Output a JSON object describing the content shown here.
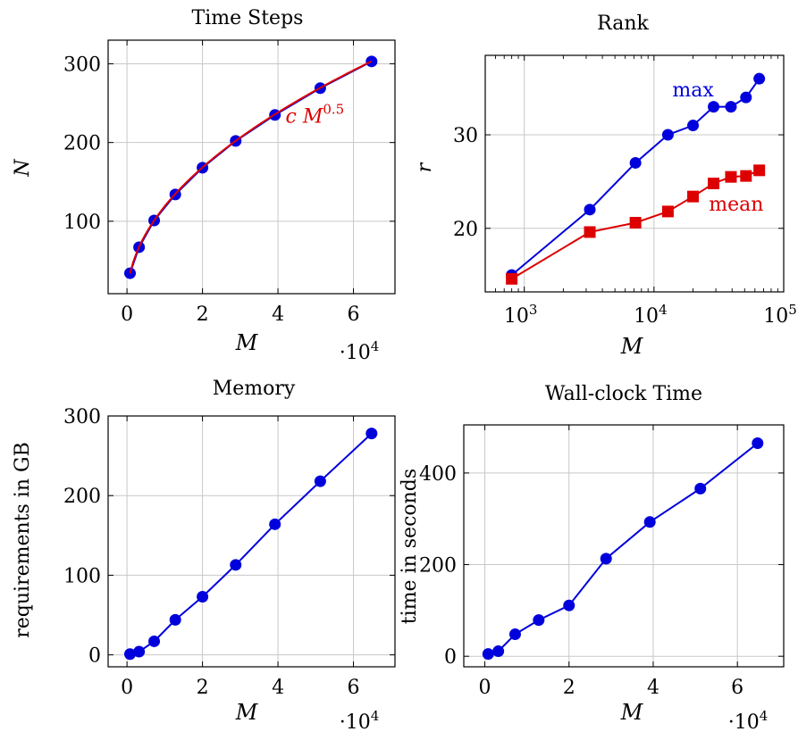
{
  "chart_data": [
    {
      "id": "timesteps",
      "type": "line",
      "title": "Time Steps",
      "xlabel": "M",
      "ylabel": "N",
      "xscale": "linear",
      "xlim": [
        -0.5,
        7.1
      ],
      "ylim": [
        8,
        330
      ],
      "x_multiplier": "·10^4",
      "xticks": [
        0,
        2,
        4,
        6
      ],
      "yticks": [
        100,
        200,
        300
      ],
      "grid": true,
      "series": [
        {
          "color": "#0000dd",
          "marker": "circle",
          "x": [
            0.08,
            0.32,
            0.72,
            1.28,
            2.0,
            2.88,
            3.92,
            5.12,
            6.48
          ],
          "y": [
            34,
            67,
            101,
            134,
            168,
            202,
            235,
            269,
            303
          ]
        },
        {
          "name": "c M^0.5",
          "color": "#dd0000",
          "marker": "none",
          "function": "sqrt",
          "coefficient": 119.1,
          "x_range": [
            0.08,
            6.48
          ]
        }
      ],
      "annotations": [
        {
          "text": "c M",
          "superscript": "0.5",
          "color": "#dd0000",
          "x": 4.2,
          "y": 225
        }
      ]
    },
    {
      "id": "rank",
      "type": "line",
      "title": "Rank",
      "xlabel": "M",
      "ylabel": "r",
      "xscale": "log",
      "xlim": [
        500,
        100000
      ],
      "ylim": [
        13.2,
        38.5
      ],
      "xticks": [
        1000,
        10000,
        100000
      ],
      "xtick_labels": [
        {
          "base": "10",
          "exp": "3"
        },
        {
          "base": "10",
          "exp": "4"
        },
        {
          "base": "10",
          "exp": "5"
        }
      ],
      "yticks": [
        20,
        30
      ],
      "grid": true,
      "series": [
        {
          "name": "max",
          "color": "#0000dd",
          "marker": "circle",
          "x": [
            800,
            3200,
            7200,
            12800,
            20000,
            28800,
            39200,
            51200,
            64800
          ],
          "y": [
            15,
            22,
            27,
            30,
            31,
            33,
            33,
            34,
            36
          ]
        },
        {
          "name": "mean",
          "color": "#dd0000",
          "marker": "square",
          "x": [
            800,
            3200,
            7200,
            12800,
            20000,
            28800,
            39200,
            51200,
            64800
          ],
          "y": [
            14.6,
            19.6,
            20.6,
            21.8,
            23.4,
            24.8,
            25.5,
            25.6,
            26.2
          ]
        }
      ],
      "annotations": [
        {
          "text": "max",
          "color": "#0000dd",
          "x": 20000,
          "y": 34.1
        },
        {
          "text": "mean",
          "color": "#dd0000",
          "x": 43000,
          "y": 21.9
        }
      ]
    },
    {
      "id": "memory",
      "type": "line",
      "title": "Memory",
      "xlabel": "M",
      "ylabel": "requirements in GB",
      "xscale": "linear",
      "xlim": [
        -0.5,
        7.1
      ],
      "ylim": [
        -15,
        300
      ],
      "x_multiplier": "·10^4",
      "xticks": [
        0,
        2,
        4,
        6
      ],
      "yticks": [
        0,
        100,
        200,
        300
      ],
      "grid": true,
      "series": [
        {
          "color": "#0000dd",
          "marker": "circle",
          "x": [
            0.08,
            0.32,
            0.72,
            1.28,
            2.0,
            2.88,
            3.92,
            5.12,
            6.48
          ],
          "y": [
            1,
            4,
            17,
            44,
            73,
            113,
            164,
            218,
            278
          ]
        }
      ]
    },
    {
      "id": "wallclock",
      "type": "line",
      "title": "Wall-clock Time",
      "xlabel": "M",
      "ylabel": "time in seconds",
      "xscale": "linear",
      "xlim": [
        -0.5,
        7.1
      ],
      "ylim": [
        -23,
        505
      ],
      "x_multiplier": "·10^4",
      "xticks": [
        0,
        2,
        4,
        6
      ],
      "yticks": [
        0,
        200,
        400
      ],
      "grid": true,
      "series": [
        {
          "color": "#0000dd",
          "marker": "circle",
          "x": [
            0.08,
            0.32,
            0.72,
            1.28,
            2.0,
            2.88,
            3.92,
            5.12,
            6.48
          ],
          "y": [
            5,
            11,
            48,
            79,
            111,
            213,
            293,
            366,
            465
          ]
        }
      ]
    }
  ]
}
